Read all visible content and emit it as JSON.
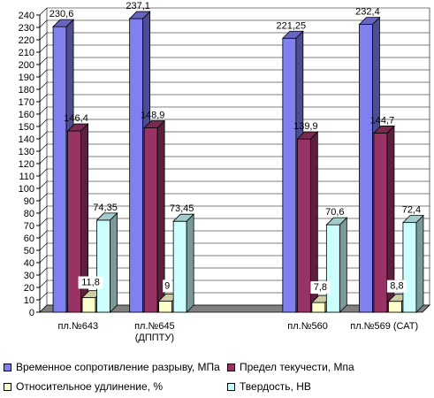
{
  "chart_data": {
    "type": "bar",
    "style": "3d-clustered",
    "categories": [
      "пл.№643",
      "пл.№645\n(ДППТУ)",
      "",
      "пл.№560",
      "пл.№569  (САТ)"
    ],
    "series": [
      {
        "name": "Временное сопротивление разрыву, МПа",
        "values": [
          230.6,
          237.1,
          null,
          221.25,
          232.4
        ],
        "labels": [
          "230,6",
          "237,1",
          "",
          "221,25",
          "232,4"
        ],
        "color": "#8080f0"
      },
      {
        "name": "Предел текучести, Мпа",
        "values": [
          146.4,
          148.9,
          null,
          139.9,
          144.7
        ],
        "labels": [
          "146,4",
          "148,9",
          "",
          "139,9",
          "144,7"
        ],
        "color": "#993366"
      },
      {
        "name": "Относительное удлинение, %",
        "values": [
          11.8,
          9,
          null,
          7.8,
          8.8
        ],
        "labels": [
          "11,8",
          "9",
          "",
          "7,8",
          "8,8"
        ],
        "color": "#ffffcc"
      },
      {
        "name": "Твердость, HB",
        "values": [
          74.35,
          73.45,
          null,
          70.6,
          72.4
        ],
        "labels": [
          "74,35",
          "73,45",
          "",
          "70,6",
          "72,4"
        ],
        "color": "#ccffff"
      }
    ],
    "ylim": [
      0,
      240
    ],
    "ytick_step": 10,
    "grid": true,
    "legend": "bottom"
  }
}
